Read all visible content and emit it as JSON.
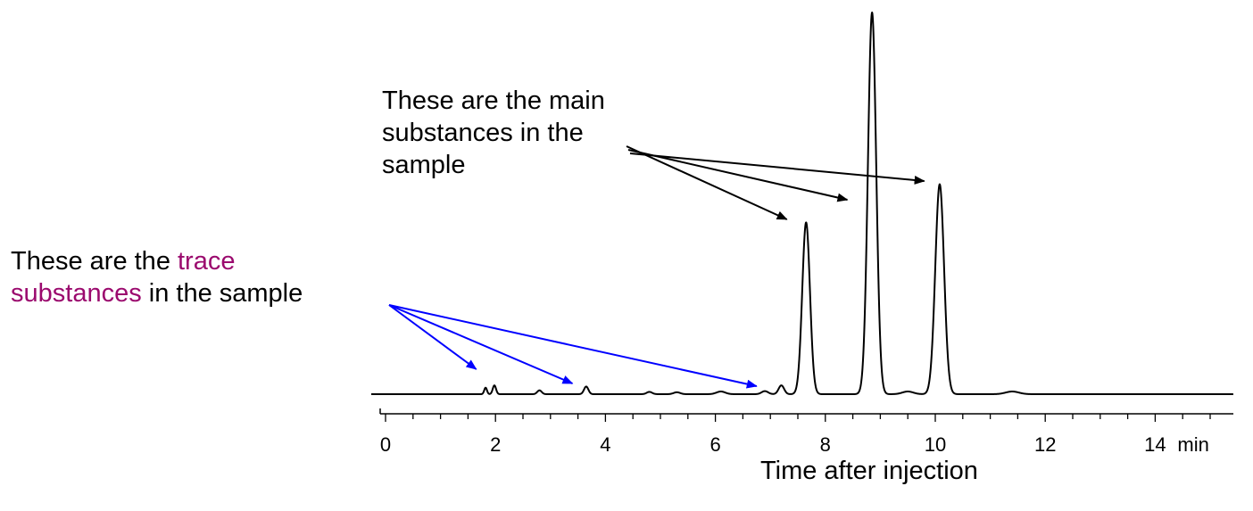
{
  "annotations": {
    "main": {
      "text": "These are the main substances in the sample",
      "line1": "These are the main",
      "line2": "substances in the",
      "line3": "sample",
      "arrow_color": "#000000",
      "targets_min": [
        7.3,
        8.4,
        9.8
      ]
    },
    "trace": {
      "line1_prefix": "These are the ",
      "line1_accent": "trace",
      "line2_accent": "substances",
      "line2_suffix": " in the sample",
      "accent_color": "#9b0a6e",
      "arrow_color": "#0000ff",
      "targets_min": [
        1.65,
        3.4,
        6.75
      ]
    }
  },
  "chart_data": {
    "type": "line",
    "title": "",
    "xlabel": "Time after injection",
    "ylabel": "",
    "x_unit": "min",
    "xlim": [
      -0.1,
      15.2
    ],
    "ylim": [
      0,
      100
    ],
    "x_ticks": [
      0,
      2,
      4,
      6,
      8,
      10,
      12,
      14
    ],
    "x_tick_labels": [
      "0",
      "2",
      "4",
      "6",
      "8",
      "10",
      "12",
      "14"
    ],
    "grid": false,
    "legend": "none",
    "baseline": 0,
    "line_color": "#000000",
    "peaks": [
      {
        "t": 1.82,
        "h": 1.7,
        "w": 0.025
      },
      {
        "t": 1.98,
        "h": 2.3,
        "w": 0.03
      },
      {
        "t": 2.8,
        "h": 1.0,
        "w": 0.04
      },
      {
        "t": 3.65,
        "h": 2.0,
        "w": 0.04
      },
      {
        "t": 4.8,
        "h": 0.6,
        "w": 0.05
      },
      {
        "t": 5.3,
        "h": 0.5,
        "w": 0.06
      },
      {
        "t": 6.1,
        "h": 0.7,
        "w": 0.08
      },
      {
        "t": 6.9,
        "h": 0.8,
        "w": 0.06
      },
      {
        "t": 7.2,
        "h": 2.3,
        "w": 0.05
      },
      {
        "t": 7.65,
        "h": 45.0,
        "w": 0.07
      },
      {
        "t": 8.85,
        "h": 100.0,
        "w": 0.075
      },
      {
        "t": 9.5,
        "h": 0.7,
        "w": 0.1
      },
      {
        "t": 10.08,
        "h": 55.0,
        "w": 0.08
      },
      {
        "t": 11.4,
        "h": 0.7,
        "w": 0.12
      }
    ]
  }
}
